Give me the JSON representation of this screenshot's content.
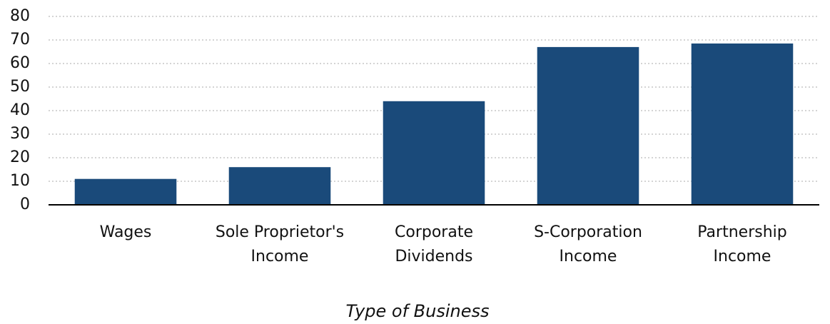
{
  "chart_data": {
    "type": "bar",
    "x_label": "Type of Business",
    "categories": [
      "Wages",
      "Sole Proprietor's\nIncome",
      "Corporate\nDividends",
      "S-Corporation\nIncome",
      "Partnership\nIncome"
    ],
    "values": [
      11,
      16,
      44,
      67,
      68.5
    ],
    "color": "#1a4a7a",
    "ylim": [
      0,
      80
    ],
    "yticks": [
      0,
      10,
      20,
      30,
      40,
      50,
      60,
      70,
      80
    ],
    "grid": true
  }
}
